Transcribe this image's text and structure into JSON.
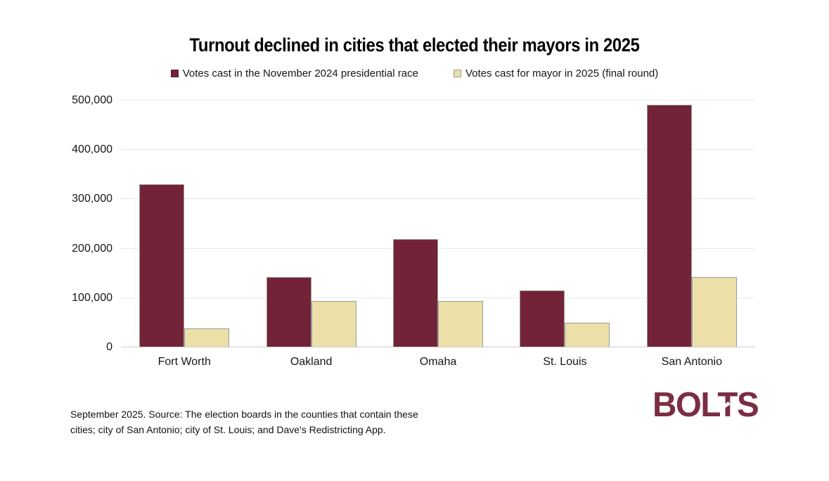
{
  "title": "Turnout declined in cities that elected their mayors in 2025",
  "legend": {
    "items": [
      {
        "label": "Votes cast in the November 2024 presidential race"
      },
      {
        "label": "Votes cast for mayor in 2025 (final round)"
      }
    ]
  },
  "chart_data": {
    "type": "bar",
    "title": "Turnout declined in cities that elected their mayors in 2025",
    "categories": [
      "Fort Worth",
      "Oakland",
      "Omaha",
      "St. Louis",
      "San Antonio"
    ],
    "series": [
      {
        "name": "Votes cast in the November 2024 presidential race",
        "color": "#722338",
        "values": [
          330000,
          142000,
          219000,
          115000,
          491000
        ]
      },
      {
        "name": "Votes cast for mayor in 2025 (final round)",
        "color": "#ecdfa8",
        "values": [
          38000,
          94000,
          94000,
          50000,
          142000
        ]
      }
    ],
    "xlabel": "",
    "ylabel": "",
    "ylim": [
      0,
      500000
    ],
    "y_ticks": [
      0,
      100000,
      200000,
      300000,
      400000,
      500000
    ],
    "grid": true,
    "legend_position": "top"
  },
  "footer": {
    "source": "September 2025. Source: The election boards in the counties that contain these cities; city of San Antonio; city of St. Louis; and Dave's Redistricting App.",
    "logo": "BOLTS"
  },
  "colors": {
    "series_2024": "#722338",
    "series_2025": "#ecdfa8",
    "bar_border": "#9b9b9b",
    "gridline": "#e9e9e9",
    "baseline": "#cccccc",
    "text": "#161616",
    "logo": "#7b2d43",
    "background": "#ffffff"
  }
}
